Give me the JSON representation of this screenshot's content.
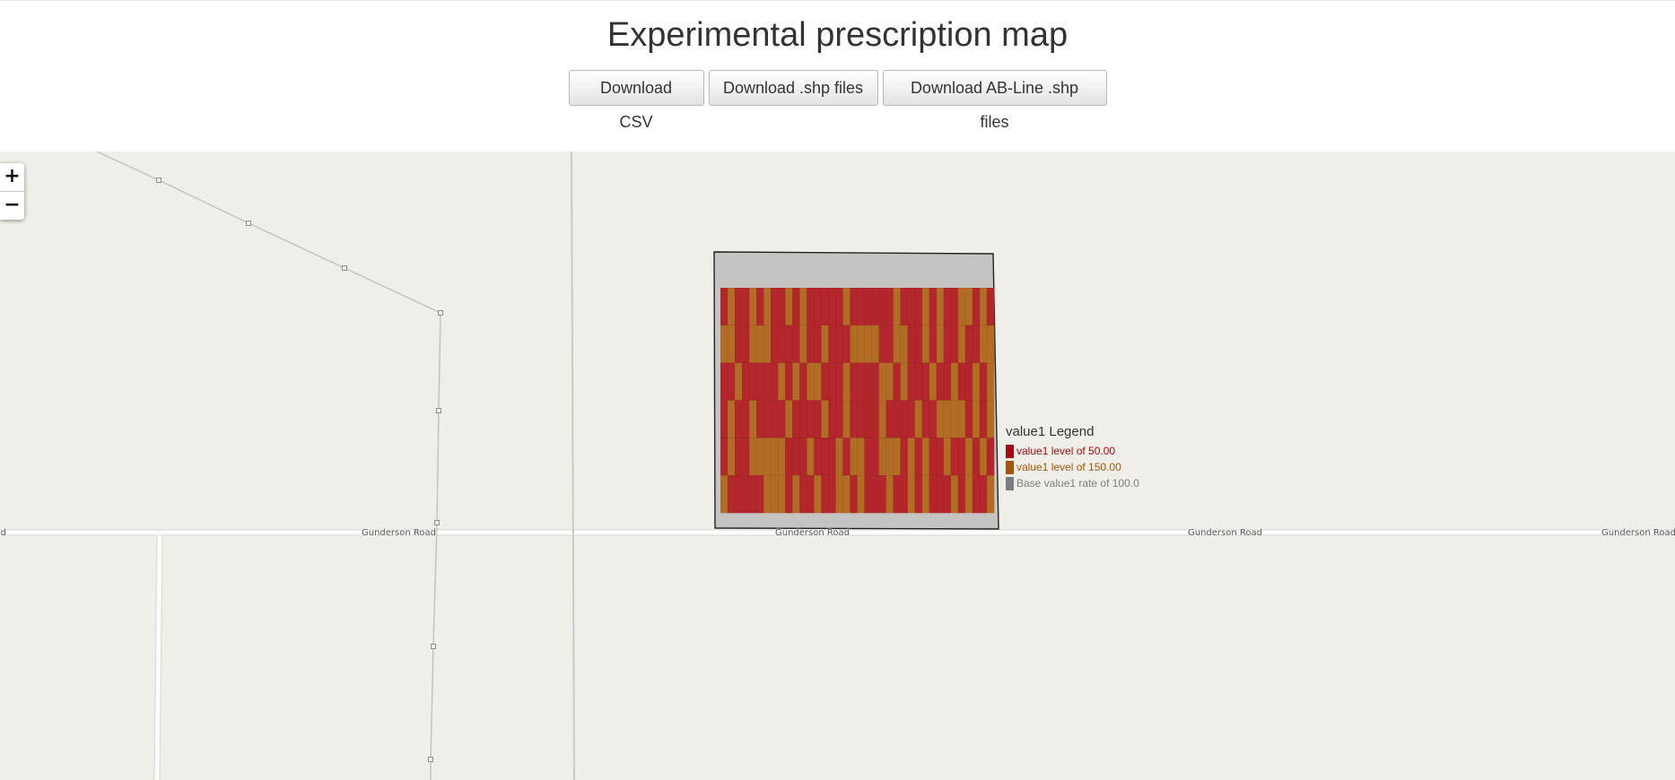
{
  "page": {
    "title": "Experimental prescription map"
  },
  "buttons": [
    {
      "label": "Download CSV"
    },
    {
      "label": "Download .shp files"
    },
    {
      "label": "Download AB-Line .shp files"
    }
  ],
  "map": {
    "zoom_in_label": "+",
    "zoom_out_label": "−",
    "road_name": "Gunderson Road",
    "colors": {
      "background": "#f0eee8",
      "field_base": "#c6c4c2",
      "level_low": "#b3262b",
      "level_high": "#b26d25",
      "roads": "#c4c4c4"
    }
  },
  "legend": {
    "title": "value1 Legend",
    "items": [
      {
        "label": "value1 level of 50.00",
        "color": "#a10d11"
      },
      {
        "label": "value1 level of 150.00",
        "color": "#a5540a"
      },
      {
        "label": "Base value1 rate of 100.0",
        "color": "#7d7d7d"
      }
    ]
  },
  "prescription_grid": {
    "rows": [
      "LHLLHLHLLHLHLLLLLHLLLLLLHLLLHLHLLHHLHL",
      "HHLLHHHLLLLHLLHLLLHHHHLLHHLLHLHLLHLLHH",
      "LLHLLLLLHLHLHHLLLHLLLLHHLHLLLHLLHLLHLH",
      "LHLLHLLLLHLLLLHLLHLLLLHLLLLHLLHHHHLHLH",
      "LHLLHHHHHLLLHLLLHLHHLLHHHLHLHLLHLLHLHL",
      "HLLLLLHHHLHLLHLLHHLHLLLHLLHLHLLLHLHLLH"
    ]
  }
}
